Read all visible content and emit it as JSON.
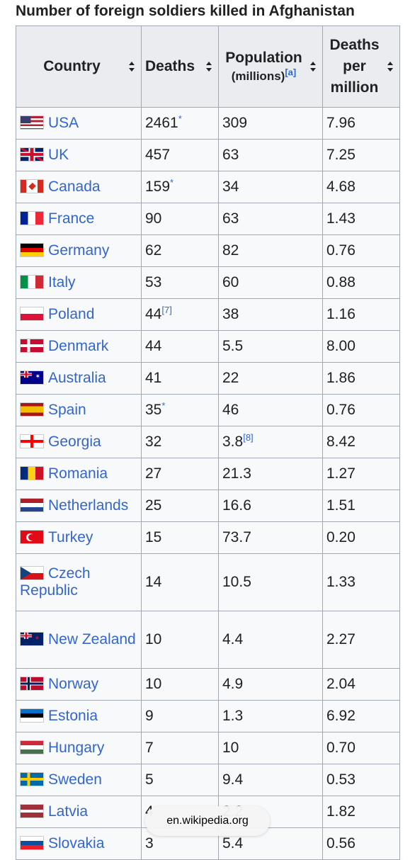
{
  "caption": "Number of foreign soldiers killed in Afghanistan",
  "headers": {
    "country": "Country",
    "deaths": "Deaths",
    "population": "Population",
    "population_sub": "(millions)",
    "population_note": "[a]",
    "per_million_1": "Deaths",
    "per_million_2": "per",
    "per_million_3": "million"
  },
  "rows": [
    {
      "country": "USA",
      "flag": "usa-flag-icon",
      "deaths": "2461",
      "deaths_note": "*",
      "population": "309",
      "pop_note": "",
      "per_million": "7.96"
    },
    {
      "country": "UK",
      "flag": "uk-flag-icon",
      "deaths": "457",
      "deaths_note": "",
      "population": "63",
      "pop_note": "",
      "per_million": "7.25"
    },
    {
      "country": "Canada",
      "flag": "canada-flag-icon",
      "deaths": "159",
      "deaths_note": "*",
      "population": "34",
      "pop_note": "",
      "per_million": "4.68"
    },
    {
      "country": "France",
      "flag": "france-flag-icon",
      "deaths": "90",
      "deaths_note": "",
      "population": "63",
      "pop_note": "",
      "per_million": "1.43"
    },
    {
      "country": "Germany",
      "flag": "germany-flag-icon",
      "deaths": "62",
      "deaths_note": "",
      "population": "82",
      "pop_note": "",
      "per_million": "0.76"
    },
    {
      "country": "Italy",
      "flag": "italy-flag-icon",
      "deaths": "53",
      "deaths_note": "",
      "population": "60",
      "pop_note": "",
      "per_million": "0.88"
    },
    {
      "country": "Poland",
      "flag": "poland-flag-icon",
      "deaths": "44",
      "deaths_note": "[7]",
      "population": "38",
      "pop_note": "",
      "per_million": "1.16"
    },
    {
      "country": "Denmark",
      "flag": "denmark-flag-icon",
      "deaths": "44",
      "deaths_note": "",
      "population": "5.5",
      "pop_note": "",
      "per_million": "8.00"
    },
    {
      "country": "Australia",
      "flag": "australia-flag-icon",
      "deaths": "41",
      "deaths_note": "",
      "population": "22",
      "pop_note": "",
      "per_million": "1.86"
    },
    {
      "country": "Spain",
      "flag": "spain-flag-icon",
      "deaths": "35",
      "deaths_note": "*",
      "population": "46",
      "pop_note": "",
      "per_million": "0.76"
    },
    {
      "country": "Georgia",
      "flag": "georgia-flag-icon",
      "deaths": "32",
      "deaths_note": "",
      "population": "3.8",
      "pop_note": "[8]",
      "per_million": "8.42"
    },
    {
      "country": "Romania",
      "flag": "romania-flag-icon",
      "deaths": "27",
      "deaths_note": "",
      "population": "21.3",
      "pop_note": "",
      "per_million": "1.27"
    },
    {
      "country": "Netherlands",
      "flag": "netherlands-flag-icon",
      "deaths": "25",
      "deaths_note": "",
      "population": "16.6",
      "pop_note": "",
      "per_million": "1.51"
    },
    {
      "country": "Turkey",
      "flag": "turkey-flag-icon",
      "deaths": "15",
      "deaths_note": "",
      "population": "73.7",
      "pop_note": "",
      "per_million": "0.20"
    },
    {
      "country": "Czech Republic",
      "flag": "czech-flag-icon",
      "deaths": "14",
      "deaths_note": "",
      "population": "10.5",
      "pop_note": "",
      "per_million": "1.33"
    },
    {
      "country": "New Zealand",
      "flag": "nz-flag-icon",
      "deaths": "10",
      "deaths_note": "",
      "population": "4.4",
      "pop_note": "",
      "per_million": "2.27"
    },
    {
      "country": "Norway",
      "flag": "norway-flag-icon",
      "deaths": "10",
      "deaths_note": "",
      "population": "4.9",
      "pop_note": "",
      "per_million": "2.04"
    },
    {
      "country": "Estonia",
      "flag": "estonia-flag-icon",
      "deaths": "9",
      "deaths_note": "",
      "population": "1.3",
      "pop_note": "",
      "per_million": "6.92"
    },
    {
      "country": "Hungary",
      "flag": "hungary-flag-icon",
      "deaths": "7",
      "deaths_note": "",
      "population": "10",
      "pop_note": "",
      "per_million": "0.70"
    },
    {
      "country": "Sweden",
      "flag": "sweden-flag-icon",
      "deaths": "5",
      "deaths_note": "",
      "population": "9.4",
      "pop_note": "",
      "per_million": "0.53"
    },
    {
      "country": "Latvia",
      "flag": "latvia-flag-icon",
      "deaths": "4",
      "deaths_note": "",
      "population": "2.2",
      "pop_note": "",
      "per_million": "1.82"
    },
    {
      "country": "Slovakia",
      "flag": "slovakia-flag-icon",
      "deaths": "3",
      "deaths_note": "",
      "population": "5.4",
      "pop_note": "",
      "per_million": "0.56"
    }
  ],
  "url_pill": "en.wikipedia.org"
}
